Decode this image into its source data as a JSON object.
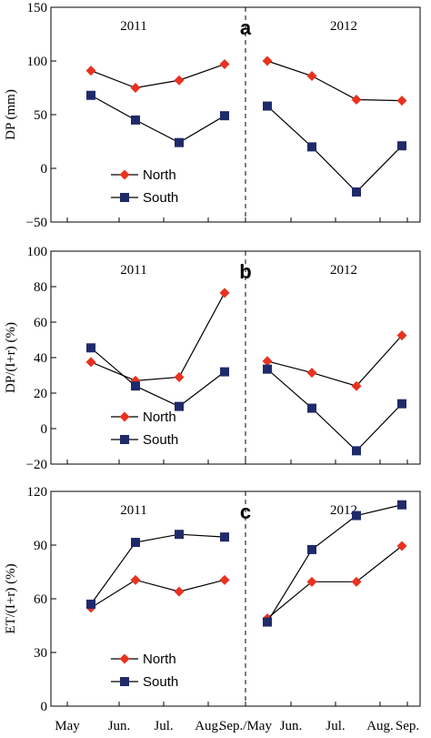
{
  "chart_data": [
    {
      "type": "line",
      "panel_label": "a",
      "ylabel": "DP (mm)",
      "ylim": [
        -50,
        150
      ],
      "yticks": [
        -50,
        0,
        50,
        100,
        150
      ],
      "yticklabels": [
        "−50",
        "0",
        "50",
        "100",
        "150"
      ],
      "years": [
        "2011",
        "2012"
      ],
      "legend": [
        "North",
        "South"
      ],
      "legend_position": "lower-left",
      "series": [
        {
          "name": "North",
          "color": "#e8321f",
          "marker": "diamond",
          "y2011": [
            91,
            75,
            82,
            97
          ],
          "y2012": [
            100,
            86,
            64,
            63
          ]
        },
        {
          "name": "South",
          "color": "#1f2a6b",
          "marker": "square",
          "y2011": [
            68,
            45,
            24,
            49
          ],
          "y2012": [
            58,
            20,
            -22,
            21
          ]
        }
      ]
    },
    {
      "type": "line",
      "panel_label": "b",
      "ylabel": "DP/(I+r) (%)",
      "ylim": [
        -20,
        100
      ],
      "yticks": [
        -20,
        0,
        20,
        40,
        60,
        80,
        100
      ],
      "yticklabels": [
        "−20",
        "0",
        "20",
        "40",
        "60",
        "80",
        "100"
      ],
      "years": [
        "2011",
        "2012"
      ],
      "legend": [
        "North",
        "South"
      ],
      "legend_position": "lower-left",
      "series": [
        {
          "name": "North",
          "color": "#e8321f",
          "marker": "diamond",
          "y2011": [
            37.5,
            27,
            29,
            76.5
          ],
          "y2012": [
            38,
            31.5,
            24,
            52.5
          ]
        },
        {
          "name": "South",
          "color": "#1f2a6b",
          "marker": "square",
          "y2011": [
            45.5,
            24,
            12.5,
            32
          ],
          "y2012": [
            33.5,
            11.5,
            -12.5,
            14
          ]
        }
      ]
    },
    {
      "type": "line",
      "panel_label": "c",
      "ylabel": "ET/(I+r) (%)",
      "ylim": [
        0,
        120
      ],
      "yticks": [
        0,
        30,
        60,
        90,
        120
      ],
      "yticklabels": [
        "0",
        "30",
        "60",
        "90",
        "120"
      ],
      "years": [
        "2011",
        "2012"
      ],
      "legend": [
        "North",
        "South"
      ],
      "legend_position": "lower-left",
      "series": [
        {
          "name": "North",
          "color": "#e8321f",
          "marker": "diamond",
          "y2011": [
            55,
            70.5,
            64,
            70.5
          ],
          "y2012": [
            49,
            69.5,
            69.5,
            89.5
          ]
        },
        {
          "name": "South",
          "color": "#1f2a6b",
          "marker": "square",
          "y2011": [
            57,
            91.5,
            96,
            94.5
          ],
          "y2012": [
            47,
            87.5,
            106.5,
            112.5
          ]
        }
      ]
    }
  ],
  "xaxis": {
    "months": [
      "May",
      "Jun.",
      "Jul.",
      "Aug.",
      "Sep./May",
      "Jun.",
      "Jul.",
      "Aug.",
      "Sep."
    ]
  }
}
